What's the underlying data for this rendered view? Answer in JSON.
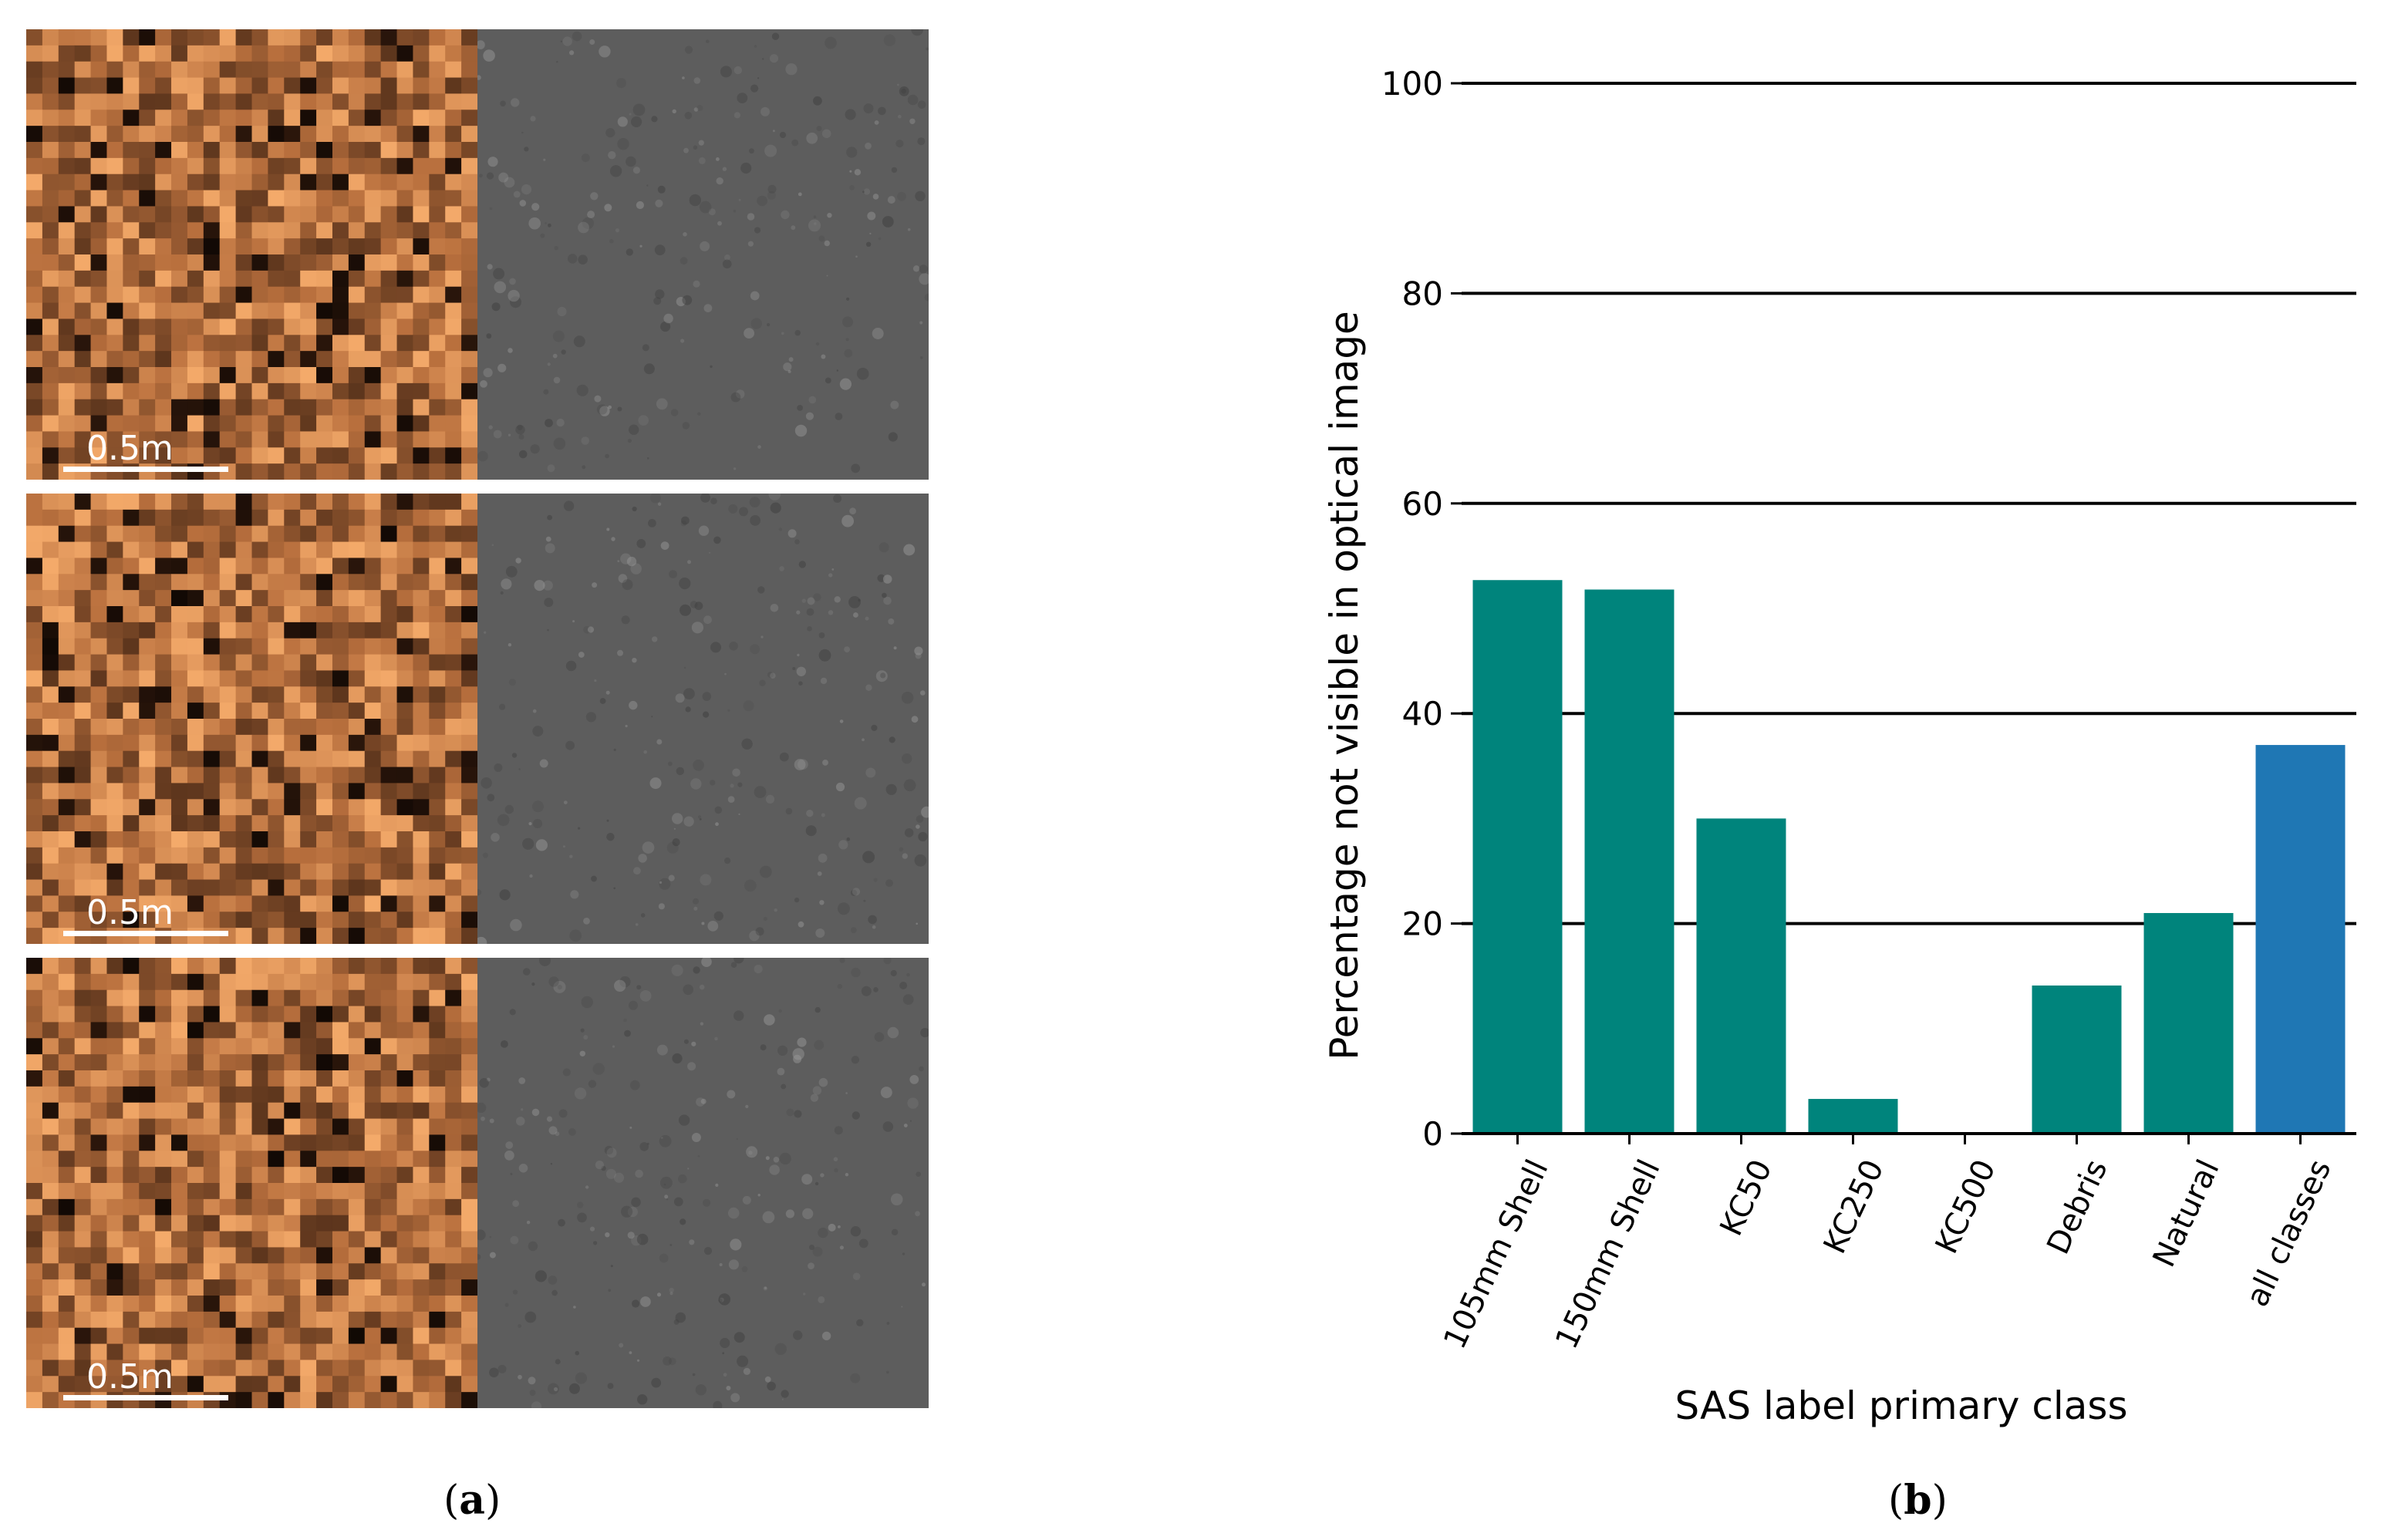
{
  "panel_a": {
    "rows": [
      {
        "scale_label": "0.5m"
      },
      {
        "scale_label": "0.5m"
      },
      {
        "scale_label": "0.5m"
      }
    ],
    "colors": {
      "sas_dark": "#2b160b",
      "sas_mid": "#b86f3d",
      "sas_light": "#f4aa6a",
      "optical": "#5d5d5d"
    },
    "caption": {
      "open": "(",
      "letter": "a",
      "close": ")"
    }
  },
  "panel_b": {
    "caption": {
      "open": "(",
      "letter": "b",
      "close": ")"
    }
  },
  "chart_data": {
    "type": "bar",
    "title": "",
    "xlabel": "SAS label primary class",
    "ylabel": "Percentage not visible in optical image",
    "categories": [
      "105mm Shell",
      "150mm Shell",
      "KC50",
      "KC250",
      "KC500",
      "Debris",
      "Natural",
      "all classes"
    ],
    "values": [
      52.7,
      51.8,
      30.0,
      3.3,
      0,
      14.1,
      21.0,
      37.0
    ],
    "bar_colors": [
      "#00847c",
      "#00847c",
      "#00847c",
      "#00847c",
      "#00847c",
      "#00847c",
      "#00847c",
      "#1f77b4"
    ],
    "ylim": [
      0,
      100
    ],
    "yticks": [
      0,
      20,
      40,
      60,
      80,
      100
    ],
    "grid": true
  }
}
